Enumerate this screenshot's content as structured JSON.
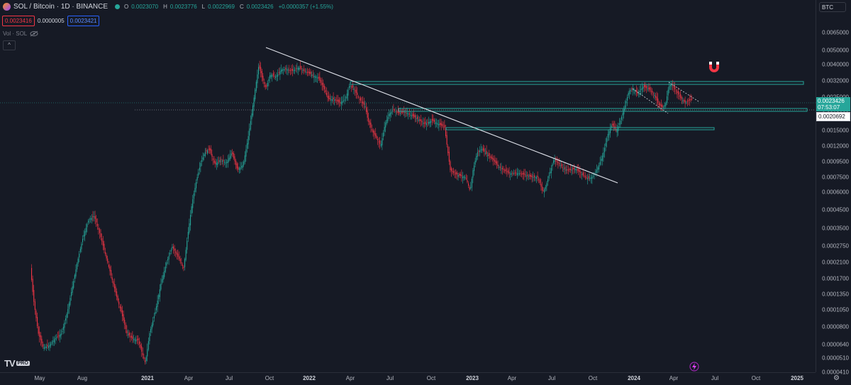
{
  "legend": {
    "symbol": "SOL / Bitcoin · 1D · BINANCE",
    "o_key": "O",
    "o_val": "0.0023070",
    "h_key": "H",
    "h_val": "0.0023776",
    "l_key": "L",
    "l_val": "0.0022969",
    "c_key": "C",
    "c_val": "0.0023426",
    "change": "+0.0000357 (+1.55%)",
    "sell_price": "0.0023416",
    "spread": "0.0000005",
    "buy_price": "0.0023421",
    "vol_label": "Vol · SOL",
    "collapse_glyph": "^"
  },
  "price_axis": {
    "currency": "BTC",
    "ticks": [
      "0.0065000",
      "0.0050000",
      "0.0040000",
      "0.0032000",
      "0.0025000",
      "0.0019000",
      "0.0015000",
      "0.0012000",
      "0.0009500",
      "0.0007500",
      "0.0006000",
      "0.0004500",
      "0.0003500",
      "0.0002750",
      "0.0002100",
      "0.0001700",
      "0.0001350",
      "0.0001050",
      "0.0000800",
      "0.0000640",
      "0.0000510",
      "0.0000410"
    ],
    "last_price": "0.0023426",
    "countdown": "07:53:07",
    "crosshair_price": "0.0020692"
  },
  "time_axis": {
    "labels": [
      "May",
      "Aug",
      "2021",
      "Apr",
      "Jul",
      "Oct",
      "2022",
      "Apr",
      "Jul",
      "Oct",
      "2023",
      "Apr",
      "Jul",
      "Oct",
      "2024",
      "Apr",
      "Jul",
      "Oct",
      "2025"
    ]
  },
  "logo": {
    "mark": "TV",
    "badge": "PRO"
  },
  "icons": {
    "magnet": "magnet-icon",
    "settings": "gear-icon",
    "bolt": "lightning-icon"
  },
  "colors": {
    "up": "#26a69a",
    "down": "#f23645",
    "zone": "#26a69a",
    "trendline": "#e0e3eb",
    "bg": "#161a25"
  }
}
